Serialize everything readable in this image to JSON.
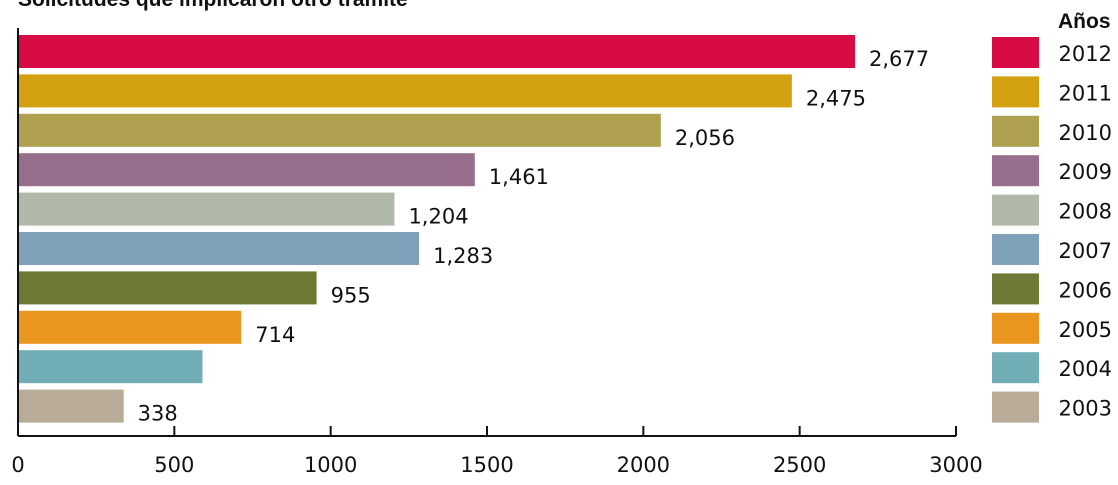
{
  "chart_data": {
    "type": "bar",
    "orientation": "horizontal",
    "title": "Solicitudes que implicaron otro trámite",
    "legend_title": "Años",
    "legend_position": "right",
    "xlim": [
      0,
      3000
    ],
    "xticks": [
      "0",
      "500",
      "1000",
      "1500",
      "2000",
      "2500",
      "3000"
    ],
    "grid": false,
    "bars": [
      {
        "year": "2012",
        "value": 2677,
        "label": "2,677",
        "color": "#d70c45"
      },
      {
        "year": "2011",
        "value": 2475,
        "label": "2,475",
        "color": "#d3a011"
      },
      {
        "year": "2010",
        "value": 2056,
        "label": "2,056",
        "color": "#afa050"
      },
      {
        "year": "2009",
        "value": 1461,
        "label": "1,461",
        "color": "#976f8c"
      },
      {
        "year": "2008",
        "value": 1204,
        "label": "1,204",
        "color": "#b0b8a8"
      },
      {
        "year": "2007",
        "value": 1283,
        "label": "1,283",
        "color": "#7fa2ba"
      },
      {
        "year": "2006",
        "value": 955,
        "label": "955",
        "color": "#6d7a35"
      },
      {
        "year": "2005",
        "value": 714,
        "label": "714",
        "color": "#ea951d"
      },
      {
        "year": "2004",
        "value": 590,
        "label": "",
        "color": "#71adb5"
      },
      {
        "year": "2003",
        "value": 338,
        "label": "338",
        "color": "#b8ab97"
      }
    ]
  }
}
